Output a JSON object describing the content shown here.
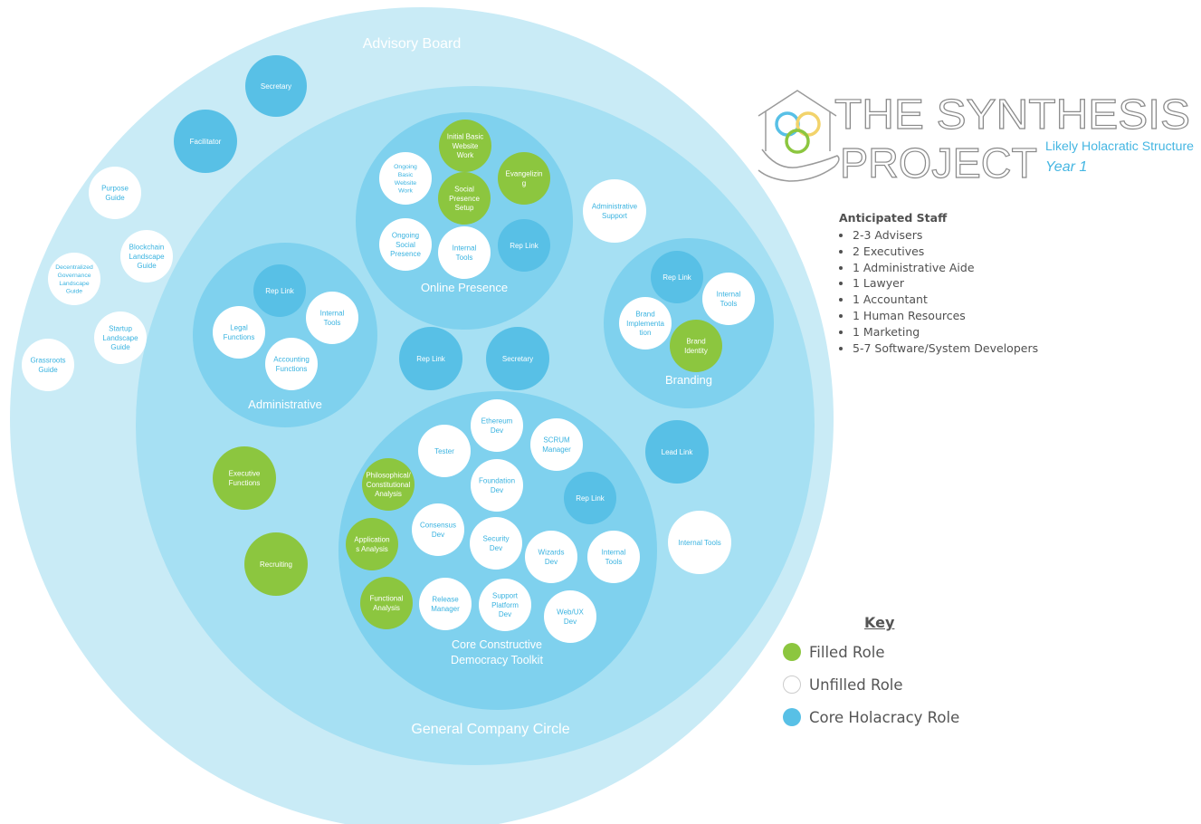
{
  "circles": {
    "advisory_board": "Advisory Board",
    "general_company": "General Company Circle",
    "online_presence": "Online Presence",
    "administrative": "Administrative",
    "branding": "Branding",
    "core_toolkit": [
      "Core Constructive",
      "Democracy Toolkit"
    ]
  },
  "logo": {
    "line1": "THE SYNTHESIS",
    "line2": "PROJECT",
    "subtitle": "Likely Holacratic Structure",
    "year": "Year 1"
  },
  "staff": {
    "title": "Anticipated Staff",
    "items": [
      "2-3 Advisers",
      "2 Executives",
      "1 Administrative Aide",
      "1 Lawyer",
      "1 Accountant",
      "1 Human Resources",
      "1 Marketing",
      "5-7 Software/System Developers"
    ]
  },
  "key": {
    "title": "Key",
    "items": [
      {
        "label": "Filled Role",
        "type": "filled"
      },
      {
        "label": "Unfilled Role",
        "type": "unfilled"
      },
      {
        "label": "Core Holacracy Role",
        "type": "core"
      }
    ]
  },
  "colors": {
    "filled": "#8cc63f",
    "unfilled": "#ffffff",
    "core": "#58c0e6",
    "advisory_fill": "#c9ebf6",
    "general_fill": "#a6e0f3",
    "subcircle_fill": "#7fd1ee",
    "label_on_light": "#eaf8fc",
    "unfilled_text": "#3ab3e0"
  },
  "roles": [
    {
      "id": "advisory-secretary",
      "lines": [
        "Secretary"
      ],
      "type": "core"
    },
    {
      "id": "advisory-facilitator",
      "lines": [
        "Facilitator"
      ],
      "type": "core"
    },
    {
      "id": "purpose-guide",
      "lines": [
        "Purpose",
        "Guide"
      ],
      "type": "unfilled"
    },
    {
      "id": "blockchain-landscape-guide",
      "lines": [
        "Blockchain",
        "Landscape",
        "Guide"
      ],
      "type": "unfilled"
    },
    {
      "id": "decentralized-governance-guide",
      "lines": [
        "Decentralized",
        "Governance",
        "Landscape",
        "Guide"
      ],
      "type": "unfilled"
    },
    {
      "id": "startup-landscape-guide",
      "lines": [
        "Startup",
        "Landscape",
        "Guide"
      ],
      "type": "unfilled"
    },
    {
      "id": "grassroots-guide",
      "lines": [
        "Grassroots",
        "Guide"
      ],
      "type": "unfilled"
    },
    {
      "id": "initial-basic-website-work",
      "lines": [
        "Initial Basic",
        "Website",
        "Work"
      ],
      "type": "filled"
    },
    {
      "id": "ongoing-basic-website-work",
      "lines": [
        "Ongoing",
        "Basic",
        "Website",
        "Work"
      ],
      "type": "unfilled"
    },
    {
      "id": "evangelizing",
      "lines": [
        "Evangelizin",
        "g"
      ],
      "type": "filled"
    },
    {
      "id": "social-presence-setup",
      "lines": [
        "Social",
        "Presence",
        "Setup"
      ],
      "type": "filled"
    },
    {
      "id": "ongoing-social-presence",
      "lines": [
        "Ongoing",
        "Social",
        "Presence"
      ],
      "type": "unfilled"
    },
    {
      "id": "online-internal-tools",
      "lines": [
        "Internal",
        "Tools"
      ],
      "type": "unfilled"
    },
    {
      "id": "online-rep-link",
      "lines": [
        "Rep Link"
      ],
      "type": "core"
    },
    {
      "id": "administrative-support",
      "lines": [
        "Administrative",
        "Support"
      ],
      "type": "unfilled"
    },
    {
      "id": "admin-rep-link",
      "lines": [
        "Rep Link"
      ],
      "type": "core"
    },
    {
      "id": "admin-internal-tools",
      "lines": [
        "Internal",
        "Tools"
      ],
      "type": "unfilled"
    },
    {
      "id": "legal-functions",
      "lines": [
        "Legal",
        "Functions"
      ],
      "type": "unfilled"
    },
    {
      "id": "accounting-functions",
      "lines": [
        "Accounting",
        "Functions"
      ],
      "type": "unfilled"
    },
    {
      "id": "gcc-rep-link",
      "lines": [
        "Rep  Link"
      ],
      "type": "core"
    },
    {
      "id": "gcc-secretary",
      "lines": [
        "Secretary"
      ],
      "type": "core"
    },
    {
      "id": "branding-rep-link",
      "lines": [
        "Rep Link"
      ],
      "type": "core"
    },
    {
      "id": "branding-internal-tools",
      "lines": [
        "Internal",
        "Tools"
      ],
      "type": "unfilled"
    },
    {
      "id": "brand-implementation",
      "lines": [
        "Brand",
        "Implementa",
        "tion"
      ],
      "type": "unfilled"
    },
    {
      "id": "brand-identity",
      "lines": [
        "Brand",
        "Identity"
      ],
      "type": "filled"
    },
    {
      "id": "lead-link",
      "lines": [
        "Lead Link"
      ],
      "type": "core"
    },
    {
      "id": "gcc-internal-tools",
      "lines": [
        "Internal Tools"
      ],
      "type": "unfilled"
    },
    {
      "id": "executive-functions",
      "lines": [
        "Executive",
        "Functions"
      ],
      "type": "filled"
    },
    {
      "id": "recruiting",
      "lines": [
        "Recruiting"
      ],
      "type": "filled"
    },
    {
      "id": "ethereum-dev",
      "lines": [
        "Ethereum",
        "Dev"
      ],
      "type": "unfilled"
    },
    {
      "id": "tester",
      "lines": [
        "Tester"
      ],
      "type": "unfilled"
    },
    {
      "id": "scrum-manager",
      "lines": [
        "SCRUM",
        "Manager"
      ],
      "type": "unfilled"
    },
    {
      "id": "philosophical-analysis",
      "lines": [
        "Philosophical/",
        "Constitutional",
        "Analysis"
      ],
      "type": "filled"
    },
    {
      "id": "foundation-dev",
      "lines": [
        "Foundation",
        "Dev"
      ],
      "type": "unfilled"
    },
    {
      "id": "core-rep-link",
      "lines": [
        "Rep Link"
      ],
      "type": "core"
    },
    {
      "id": "consensus-dev",
      "lines": [
        "Consensus",
        "Dev"
      ],
      "type": "unfilled"
    },
    {
      "id": "applications-analysis",
      "lines": [
        "Application",
        "s Analysis"
      ],
      "type": "filled"
    },
    {
      "id": "security-dev",
      "lines": [
        "Security",
        "Dev"
      ],
      "type": "unfilled"
    },
    {
      "id": "wizards-dev",
      "lines": [
        "Wizards",
        "Dev"
      ],
      "type": "unfilled"
    },
    {
      "id": "core-internal-tools",
      "lines": [
        "Internal",
        "Tools"
      ],
      "type": "unfilled"
    },
    {
      "id": "functional-analysis",
      "lines": [
        "Functional",
        "Analysis"
      ],
      "type": "filled"
    },
    {
      "id": "release-manager",
      "lines": [
        "Release",
        "Manager"
      ],
      "type": "unfilled"
    },
    {
      "id": "support-platform-dev",
      "lines": [
        "Support",
        "Platform",
        "Dev"
      ],
      "type": "unfilled"
    },
    {
      "id": "web-ux-dev",
      "lines": [
        "Web/UX",
        "Dev"
      ],
      "type": "unfilled"
    }
  ]
}
